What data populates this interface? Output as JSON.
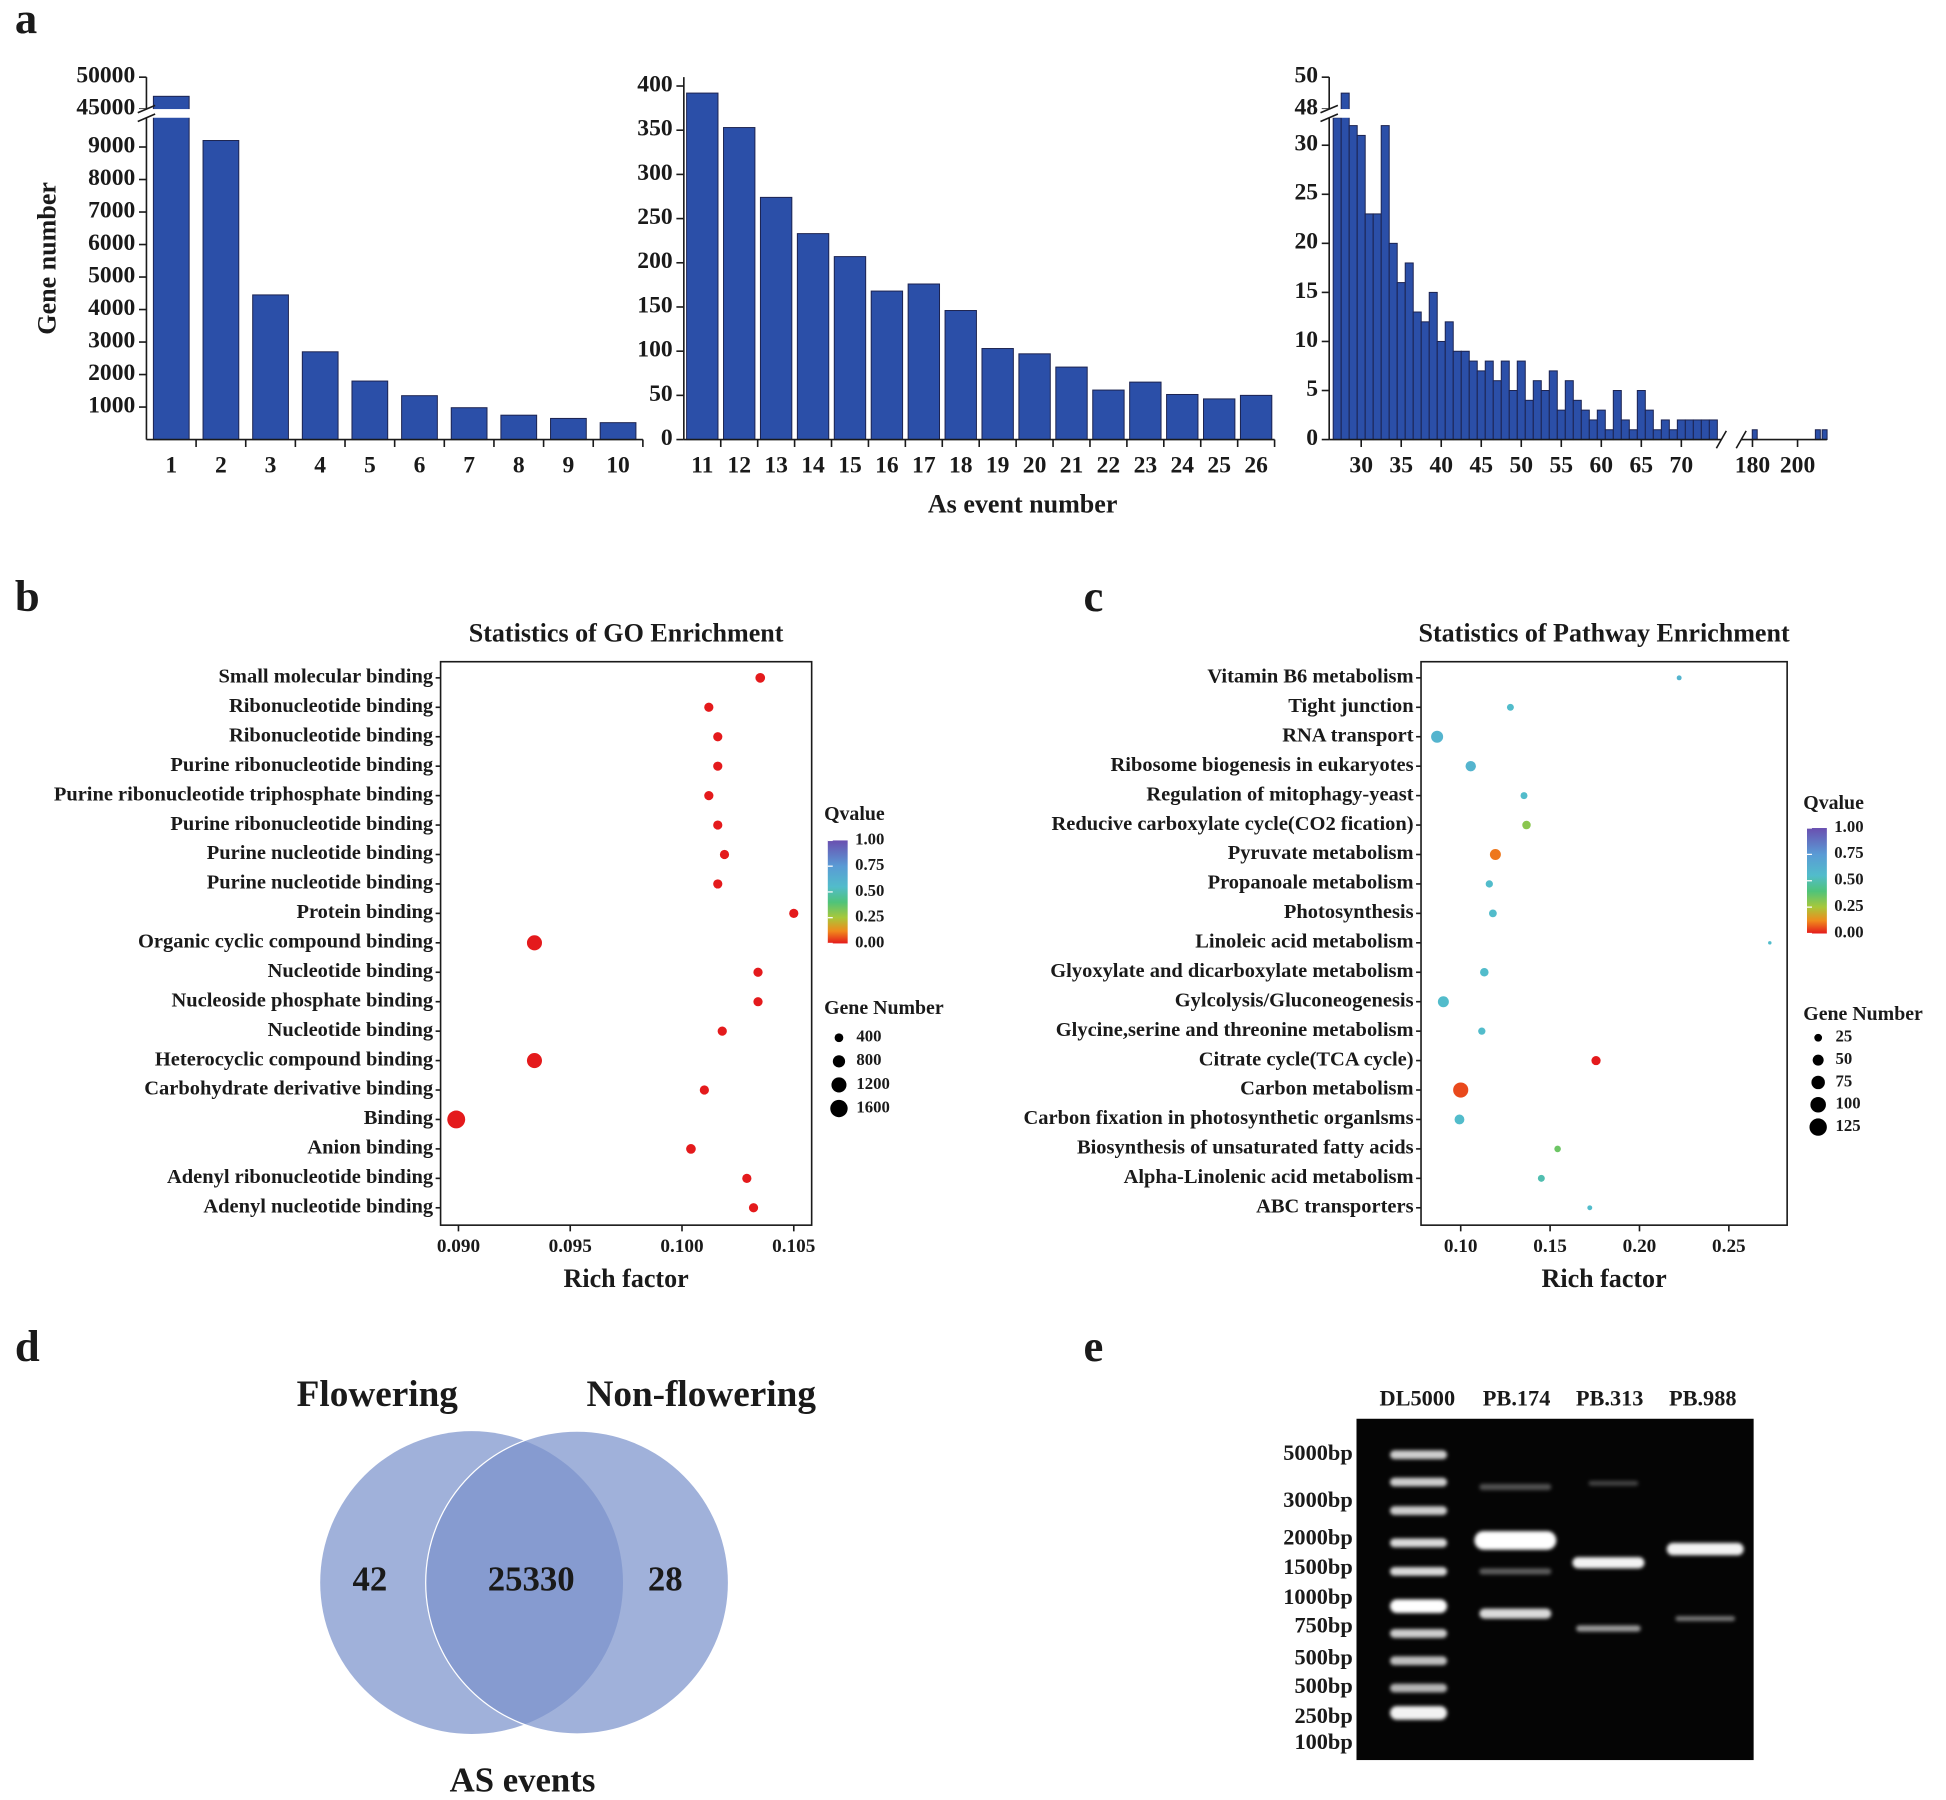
{
  "panel_labels": [
    "a",
    "b",
    "c",
    "d",
    "e"
  ],
  "chart_data": [
    {
      "type": "bar",
      "y_label": "Gene number",
      "categories": [
        "1",
        "2",
        "3",
        "4",
        "5",
        "6",
        "7",
        "8",
        "9",
        "10"
      ],
      "values": [
        47000,
        9200,
        4450,
        2700,
        1800,
        1350,
        980,
        750,
        650,
        520
      ],
      "color": "#2b4fa8",
      "ylim": [
        0,
        50000
      ],
      "ybreak": [
        9900,
        45000
      ],
      "yticks": [
        1000,
        2000,
        3000,
        4000,
        5000,
        6000,
        7000,
        8000,
        9000,
        45000,
        50000
      ]
    },
    {
      "type": "bar",
      "x_label": "As event number",
      "categories": [
        "11",
        "12",
        "13",
        "14",
        "15",
        "16",
        "17",
        "18",
        "19",
        "20",
        "21",
        "22",
        "23",
        "24",
        "25",
        "26"
      ],
      "values": [
        392,
        353,
        274,
        233,
        207,
        168,
        176,
        146,
        103,
        97,
        82,
        56,
        65,
        51,
        46,
        50
      ],
      "color": "#2b4fa8",
      "ylim": [
        0,
        410
      ],
      "yticks": [
        0,
        50,
        100,
        150,
        200,
        250,
        300,
        350,
        400
      ]
    },
    {
      "type": "bar",
      "x": [
        27,
        28,
        29,
        30,
        31,
        32,
        33,
        34,
        35,
        36,
        37,
        38,
        39,
        40,
        41,
        42,
        43,
        44,
        45,
        46,
        47,
        48,
        49,
        50,
        51,
        52,
        53,
        54,
        55,
        56,
        57,
        58,
        59,
        60,
        61,
        62,
        63,
        64,
        65,
        66,
        67,
        68,
        69,
        70,
        71,
        72,
        73,
        74,
        181,
        209,
        212
      ],
      "values": [
        40,
        49,
        32,
        31,
        23,
        23,
        32,
        20,
        16,
        18,
        13,
        12,
        15,
        10,
        12,
        9,
        9,
        8,
        7,
        8,
        6,
        8,
        5,
        8,
        4,
        6,
        5,
        7,
        3,
        6,
        4,
        3,
        2,
        3,
        1,
        5,
        2,
        1,
        5,
        3,
        1,
        2,
        1,
        2,
        2,
        2,
        2,
        2,
        1,
        1,
        1
      ],
      "color": "#2b4fa8",
      "xlim": [
        26,
        213
      ],
      "xbreak": [
        75,
        175
      ],
      "xticks": [
        30,
        35,
        40,
        45,
        50,
        55,
        60,
        65,
        70,
        180,
        200
      ],
      "ylim": [
        0,
        50
      ],
      "ybreak": [
        32.8,
        48
      ],
      "yticks": [
        0,
        5,
        10,
        15,
        20,
        25,
        30,
        48,
        50
      ]
    },
    {
      "type": "bubble",
      "title": "Statistics of GO Enrichment",
      "x_label": "Rich factor",
      "categories": [
        "Small molecular binding",
        "Ribonucleotide binding",
        "Ribonucleotide binding",
        "Purine ribonucleotide binding",
        "Purine ribonucleotide triphosphate binding",
        "Purine ribonucleotide binding",
        "Purine nucleotide binding",
        "Purine nucleotide binding",
        "Protein binding",
        "Organic cyclic compound binding",
        "Nucleotide binding",
        "Nucleoside phosphate binding",
        "Nucleotide binding",
        "Heterocyclic compound binding",
        "Carbohydrate derivative binding",
        "Binding",
        "Anion binding",
        "Adenyl ribonucleotide binding",
        "Adenyl nucleotide binding"
      ],
      "values": [
        0.1035,
        0.1012,
        0.1016,
        0.1016,
        0.1012,
        0.1016,
        0.1019,
        0.1016,
        0.105,
        0.0934,
        0.1034,
        0.1034,
        0.1018,
        0.0934,
        0.101,
        0.0899,
        0.1004,
        0.1029,
        0.1032
      ],
      "sizes": [
        500,
        450,
        450,
        450,
        450,
        450,
        450,
        450,
        450,
        1200,
        450,
        450,
        450,
        1200,
        450,
        1700,
        500,
        450,
        450
      ],
      "qvalues": [
        0,
        0,
        0,
        0,
        0,
        0,
        0,
        0,
        0,
        0,
        0,
        0,
        0,
        0,
        0,
        0,
        0,
        0,
        0
      ],
      "xlim": [
        0.0892,
        0.1058
      ],
      "xticks": [
        {
          "value": 0.09,
          "label": "0.090"
        },
        {
          "value": 0.095,
          "label": "0.095"
        },
        {
          "value": 0.1,
          "label": "0.100"
        },
        {
          "value": 0.105,
          "label": "0.105"
        }
      ],
      "color_label": "Qvalue",
      "qvalue_ticks": [
        {
          "value": 1,
          "label": "1.00"
        },
        {
          "value": 0.75,
          "label": "0.75"
        },
        {
          "value": 0.5,
          "label": "0.50"
        },
        {
          "value": 0.25,
          "label": "0.25"
        },
        {
          "value": 0,
          "label": "0.00"
        }
      ],
      "size_label": "Gene Number",
      "size_ticks": [
        400,
        800,
        1200,
        1600
      ]
    },
    {
      "type": "bubble",
      "title": "Statistics of Pathway Enrichment",
      "x_label": "Rich factor",
      "categories": [
        "Vitamin B6 metabolism",
        "Tight junction",
        "RNA transport",
        "Ribosome biogenesis in eukaryotes",
        "Regulation of mitophagy-yeast",
        "Reducive carboxylate cycle(CO2 fication)",
        "Pyruvate metabolism",
        "Propanoale metabolism",
        "Photosynthesis",
        "Linoleic acid metabolism",
        "Glyoxylate and dicarboxylate metabolism",
        "Gylcolysis/Gluconeogenesis",
        "Glycine,serine and threonine metabolism",
        "Citrate cycle(TCA cycle)",
        "Carbon metabolism",
        "Carbon fixation in photosynthetic organlsms",
        "Biosynthesis of unsaturated fatty acids",
        "Alpha-Linolenic acid metabolism",
        "ABC transporters"
      ],
      "values": [
        0.2222,
        0.1278,
        0.0868,
        0.1056,
        0.1354,
        0.1368,
        0.1194,
        0.116,
        0.118,
        0.2729,
        0.1132,
        0.0903,
        0.1118,
        0.1757,
        0.1,
        0.0993,
        0.1542,
        0.1451,
        0.1722
      ],
      "sizes": [
        10,
        20,
        60,
        45,
        20,
        30,
        50,
        22,
        25,
        5,
        30,
        50,
        22,
        35,
        95,
        40,
        18,
        20,
        10
      ],
      "qvalues": [
        0.6,
        0.55,
        0.6,
        0.6,
        0.55,
        0.3,
        0.1,
        0.55,
        0.55,
        0.55,
        0.55,
        0.55,
        0.55,
        0,
        0.05,
        0.55,
        0.35,
        0.5,
        0.55
      ],
      "xlim": [
        0.0778,
        0.2826
      ],
      "xticks": [
        {
          "value": 0.1,
          "label": "0.10"
        },
        {
          "value": 0.15,
          "label": "0.15"
        },
        {
          "value": 0.2,
          "label": "0.20"
        },
        {
          "value": 0.25,
          "label": "0.25"
        }
      ],
      "color_label": "Qvalue",
      "qvalue_ticks": [
        {
          "value": 1,
          "label": "1.00"
        },
        {
          "value": 0.75,
          "label": "0.75"
        },
        {
          "value": 0.5,
          "label": "0.50"
        },
        {
          "value": 0.25,
          "label": "0.25"
        },
        {
          "value": 0,
          "label": "0.00"
        }
      ],
      "size_label": "Gene Number",
      "size_ticks": [
        25,
        50,
        75,
        100,
        125
      ]
    }
  ],
  "venn": {
    "sets": [
      "Flowering",
      "Non-flowering"
    ],
    "counts": [
      "42",
      "25330",
      "28"
    ],
    "title": "AS events"
  },
  "gel": {
    "lanes": [
      "DL5000",
      "PB.174",
      "PB.313",
      "PB.988"
    ],
    "markers": [
      "5000bp",
      "3000bp",
      "2000bp",
      "1500bp",
      "1000bp",
      "750bp",
      "500bp",
      "500bp",
      "250bp",
      "100bp"
    ]
  }
}
